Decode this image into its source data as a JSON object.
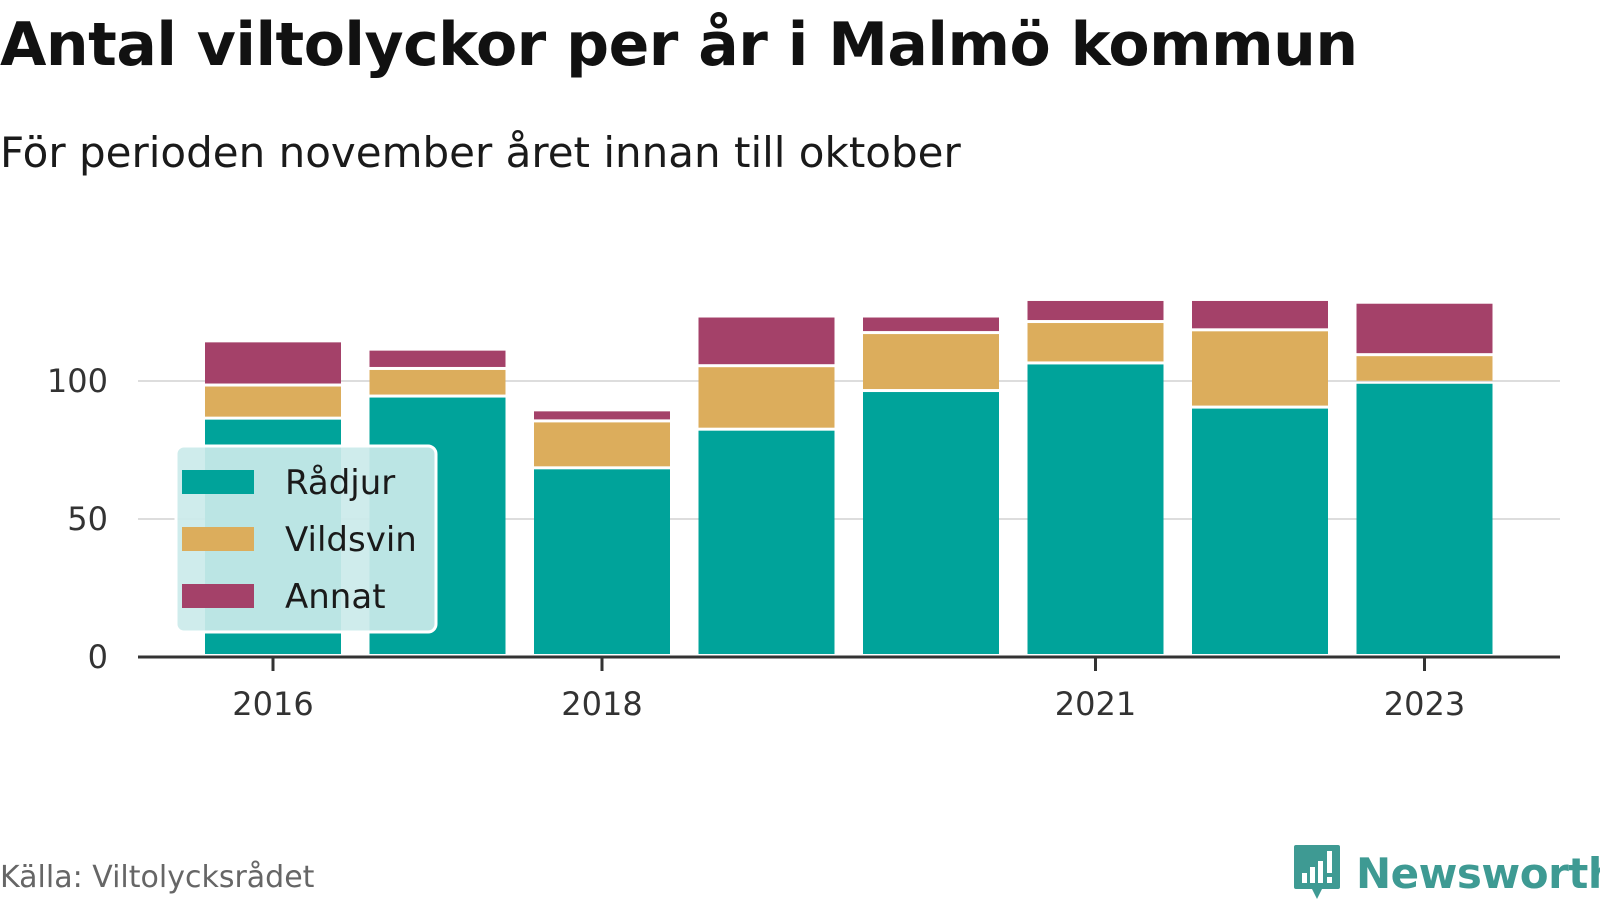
{
  "title": "Antal viltolyckor per år i Malmö kommun",
  "subtitle": "För perioden november året innan till oktober",
  "source": "Källa: Viltolycksrådet",
  "brand": "Newsworthy",
  "colors": {
    "radjur": "#00a39a",
    "vildsvin": "#dcad5c",
    "annat": "#a44169",
    "grid": "#dddddd",
    "axis": "#333333",
    "legend_bg": "#cbeaea",
    "brand": "#3e9a93"
  },
  "chart_data": {
    "type": "bar",
    "stacked": true,
    "x": [
      2016,
      2017,
      2018,
      2019,
      2020,
      2021,
      2022,
      2023
    ],
    "x_tick_labels": [
      "2016",
      "2018",
      "2021",
      "2023"
    ],
    "y_ticks": [
      0,
      50,
      100
    ],
    "ylim": [
      0,
      135
    ],
    "grid": true,
    "legend_position": "left",
    "series": [
      {
        "name": "Rådjur",
        "color": "#00a39a",
        "values": [
          86,
          94,
          68,
          82,
          96,
          106,
          90,
          99
        ]
      },
      {
        "name": "Vildsvin",
        "color": "#dcad5c",
        "values": [
          12,
          10,
          17,
          23,
          21,
          15,
          28,
          10
        ]
      },
      {
        "name": "Annat",
        "color": "#a44169",
        "values": [
          16,
          7,
          4,
          18,
          6,
          8,
          11,
          19
        ]
      }
    ]
  }
}
